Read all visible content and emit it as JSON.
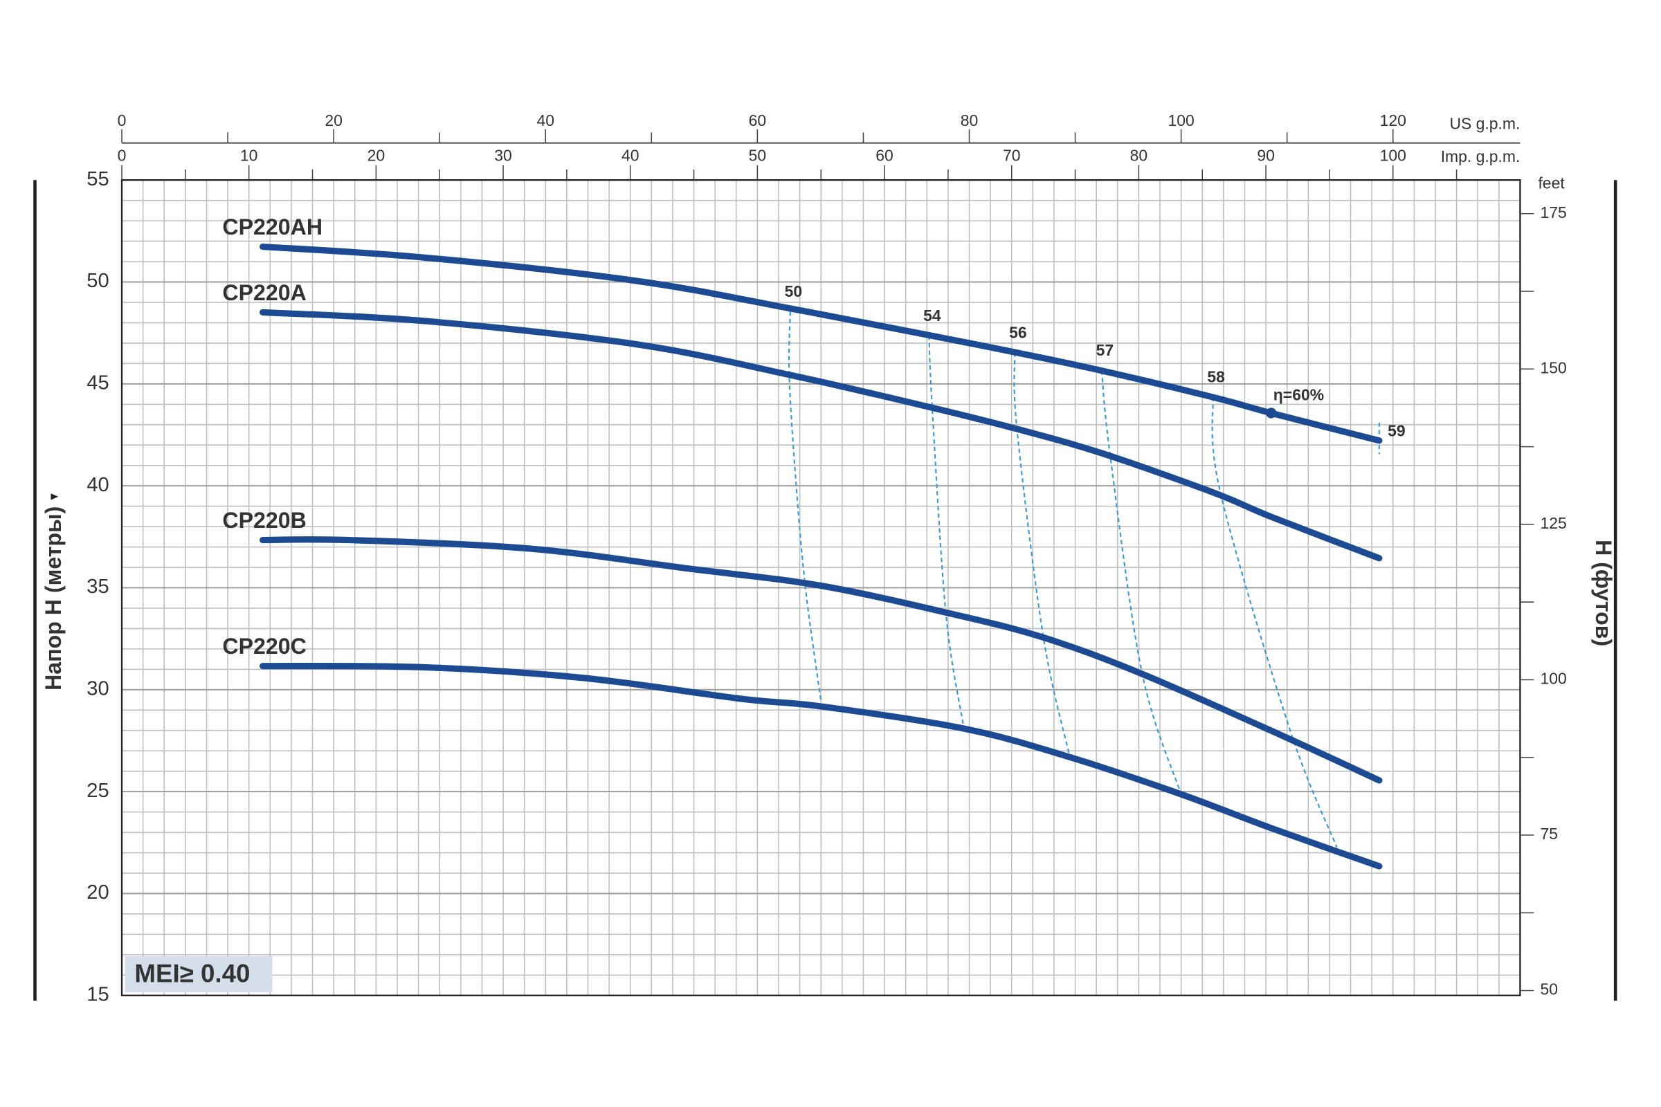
{
  "chart_data": {
    "type": "line",
    "xlim": [
      0,
      132
    ],
    "xticks": [
      0,
      20,
      40,
      60,
      80,
      100,
      120
    ],
    "xminorticks": [
      10,
      30,
      50,
      70,
      90,
      110
    ],
    "x_label": "US g.p.m.",
    "x2lim": [
      0,
      110
    ],
    "x2ticks": [
      0,
      10,
      20,
      30,
      40,
      50,
      60,
      70,
      80,
      90,
      100
    ],
    "x2minorticks": [
      5,
      15,
      25,
      35,
      45,
      55,
      65,
      75,
      85,
      95,
      105
    ],
    "x2_label": "Imp. g.p.m.",
    "xgrid": [
      2,
      4,
      6,
      8,
      10,
      12,
      14,
      16,
      18,
      20,
      22,
      24,
      26,
      28,
      30,
      32,
      34,
      36,
      38,
      40,
      42,
      44,
      46,
      48,
      50,
      52,
      54,
      56,
      58,
      60,
      62,
      64,
      66,
      68,
      70,
      72,
      74,
      76,
      78,
      80,
      82,
      84,
      86,
      88,
      90,
      92,
      94,
      96,
      98,
      100,
      102,
      104,
      106,
      108,
      110,
      112,
      114,
      116,
      118,
      120,
      122,
      124,
      126,
      128,
      130
    ],
    "ylim": [
      15,
      55
    ],
    "yticks": [
      15,
      20,
      25,
      30,
      35,
      40,
      45,
      50,
      55
    ],
    "ygrid": [
      16,
      17,
      18,
      19,
      20,
      21,
      22,
      23,
      24,
      25,
      26,
      27,
      28,
      29,
      30,
      31,
      32,
      33,
      34,
      35,
      36,
      37,
      38,
      39,
      40,
      41,
      42,
      43,
      44,
      45,
      46,
      47,
      48,
      49,
      50,
      51,
      52,
      53,
      54
    ],
    "y_label": "Напор H (метры)",
    "y2lim": [
      49.2,
      180.4
    ],
    "y2ticks": [
      50,
      75,
      100,
      125,
      150,
      175
    ],
    "y2minorticks": [
      62.5,
      87.5,
      112.5,
      137.5,
      162.5
    ],
    "y2_unit": "feet",
    "y2_label": "H (футов)",
    "grid": true,
    "series": [
      {
        "name": "CP220AH",
        "color": "#1c4a93",
        "x": [
          13.3,
          28.5,
          48.5,
          63.5,
          76.5,
          84.5,
          92.5,
          103,
          108.5,
          118.7
        ],
        "values": [
          51.73,
          51.2,
          50.06,
          48.66,
          47.36,
          46.53,
          45.65,
          44.35,
          43.57,
          42.22
        ]
      },
      {
        "name": "CP220A",
        "color": "#1c4a93",
        "x": [
          13.3,
          28.5,
          48.5,
          63.5,
          76.5,
          84.5,
          92.5,
          103,
          108.5,
          118.7
        ],
        "values": [
          48.51,
          48.09,
          46.95,
          45.39,
          43.83,
          42.79,
          41.6,
          39.68,
          38.48,
          36.45
        ]
      },
      {
        "name": "CP220B",
        "color": "#1c4a93",
        "x": [
          13.3,
          21.5,
          38.5,
          53.5,
          66,
          78.5,
          87,
          96,
          108.5,
          118.7
        ],
        "values": [
          37.34,
          37.34,
          36.92,
          35.94,
          35.1,
          33.7,
          32.56,
          30.84,
          27.99,
          25.55
        ]
      },
      {
        "name": "CP220C",
        "color": "#1c4a93",
        "x": [
          13.3,
          28.5,
          43.5,
          58.5,
          66,
          79.5,
          89.5,
          100,
          108.5,
          118.7
        ],
        "values": [
          31.16,
          31.1,
          30.58,
          29.55,
          29.18,
          28.09,
          26.69,
          24.87,
          23.21,
          21.34
        ]
      }
    ],
    "efficiency_curves": [
      {
        "name": "50",
        "x": [
          63.1,
          63,
          63.5,
          64.5,
          66
        ],
        "values": [
          48.55,
          45.54,
          41.13,
          35.15,
          29.44
        ]
      },
      {
        "name": "54",
        "x": [
          76.2,
          76.5,
          77.8,
          79.5
        ],
        "values": [
          47.36,
          43.83,
          33.7,
          28.09
        ]
      },
      {
        "name": "56",
        "x": [
          84.3,
          84.5,
          87,
          89.5
        ],
        "values": [
          46.53,
          42.79,
          32.56,
          26.69
        ]
      },
      {
        "name": "57",
        "x": [
          92.5,
          93.3,
          96.3,
          100
        ],
        "values": [
          45.65,
          41.49,
          30.84,
          24.87
        ]
      },
      {
        "name": "58",
        "x": [
          103,
          103.7,
          110.3,
          114.7
        ],
        "values": [
          44.35,
          39.68,
          27.99,
          22.27
        ]
      },
      {
        "name": "59",
        "x": [
          118.7,
          118.7
        ],
        "values": [
          43.1,
          41.55
        ]
      }
    ],
    "efficiency_color": "#3a9ad9",
    "annotations": [
      {
        "text": "η=60%",
        "x": 108.5,
        "y": 43.57
      }
    ],
    "badge": "MEI≥ 0.40"
  }
}
